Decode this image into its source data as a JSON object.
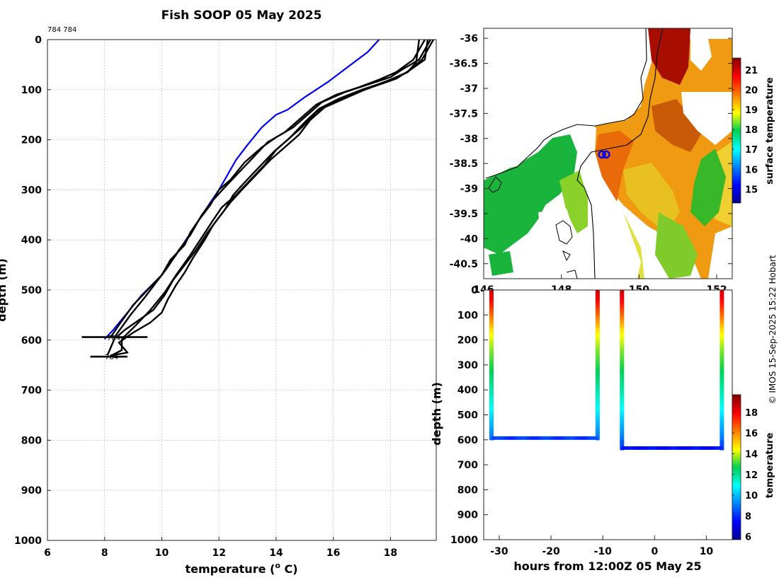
{
  "title": "Fish SOOP 05 May 2025",
  "profile_label_top": "784 784",
  "profile_marker_labels": [
    "784",
    "784"
  ],
  "credit": "© IMOS 15-Sep-2025 15:22 Hobart",
  "colors": {
    "profile": "#000000",
    "climatology": "#0000ee",
    "grid": "#b5b5b5"
  },
  "chart_data": [
    {
      "type": "line",
      "name": "profile-plot",
      "title": "Fish SOOP 05 May 2025",
      "xlabel": "temperature (° C)",
      "xlabel_main": "temperature (",
      "xlabel_sup": "o",
      "xlabel_end": " C)",
      "ylabel": "depth (m)",
      "xlim": [
        6,
        19.6
      ],
      "ylim": [
        0,
        1000
      ],
      "y_inverted": true,
      "xticks": [
        6,
        8,
        10,
        12,
        14,
        16,
        18
      ],
      "yticks": [
        0,
        100,
        200,
        300,
        400,
        500,
        600,
        700,
        800,
        900,
        1000
      ],
      "grid": true,
      "series": [
        {
          "name": "climatology",
          "color": "#0000ee",
          "points": [
            [
              17.6,
              0
            ],
            [
              17.2,
              25
            ],
            [
              16.5,
              55
            ],
            [
              15.8,
              85
            ],
            [
              15.0,
              115
            ],
            [
              14.4,
              140
            ],
            [
              14.0,
              150
            ],
            [
              13.5,
              175
            ],
            [
              13.0,
              210
            ],
            [
              12.6,
              240
            ],
            [
              12.3,
              270
            ],
            [
              12.0,
              300
            ],
            [
              11.7,
              325
            ],
            [
              11.3,
              360
            ],
            [
              10.9,
              395
            ],
            [
              10.5,
              430
            ],
            [
              10.0,
              470
            ],
            [
              9.3,
              510
            ],
            [
              8.8,
              545
            ],
            [
              8.3,
              580
            ],
            [
              8.0,
              598
            ]
          ]
        },
        {
          "name": "xbt-1",
          "color": "#000000",
          "points": [
            [
              19.4,
              0
            ],
            [
              19.0,
              40
            ],
            [
              18.4,
              60
            ],
            [
              18.0,
              75
            ],
            [
              17.2,
              90
            ],
            [
              16.4,
              105
            ],
            [
              15.6,
              125
            ],
            [
              15.1,
              150
            ],
            [
              14.6,
              175
            ],
            [
              14.0,
              195
            ],
            [
              13.5,
              215
            ],
            [
              12.9,
              245
            ],
            [
              12.4,
              280
            ],
            [
              12.0,
              300
            ],
            [
              11.7,
              330
            ],
            [
              11.3,
              360
            ],
            [
              11.0,
              385
            ],
            [
              10.8,
              410
            ],
            [
              10.3,
              440
            ],
            [
              10.0,
              470
            ],
            [
              9.5,
              500
            ],
            [
              9.0,
              530
            ],
            [
              8.5,
              570
            ],
            [
              8.2,
              595
            ]
          ]
        },
        {
          "name": "xbt-2",
          "color": "#000000",
          "points": [
            [
              19.2,
              0
            ],
            [
              18.8,
              40
            ],
            [
              18.2,
              65
            ],
            [
              17.6,
              80
            ],
            [
              16.9,
              95
            ],
            [
              16.1,
              110
            ],
            [
              15.4,
              130
            ],
            [
              14.8,
              160
            ],
            [
              14.3,
              185
            ],
            [
              13.7,
              205
            ],
            [
              13.2,
              235
            ],
            [
              12.7,
              265
            ],
            [
              12.2,
              295
            ],
            [
              11.8,
              320
            ],
            [
              11.4,
              350
            ],
            [
              11.0,
              390
            ],
            [
              10.6,
              420
            ],
            [
              10.2,
              455
            ],
            [
              9.8,
              485
            ],
            [
              9.4,
              515
            ],
            [
              8.9,
              550
            ],
            [
              8.4,
              590
            ],
            [
              8.1,
              630
            ]
          ]
        },
        {
          "name": "xbt-3",
          "color": "#000000",
          "points": [
            [
              19.5,
              0
            ],
            [
              19.1,
              40
            ],
            [
              18.6,
              65
            ],
            [
              18.0,
              80
            ],
            [
              17.3,
              95
            ],
            [
              16.5,
              115
            ],
            [
              15.7,
              135
            ],
            [
              15.2,
              160
            ],
            [
              14.8,
              190
            ],
            [
              14.3,
              215
            ],
            [
              13.8,
              240
            ],
            [
              13.3,
              270
            ],
            [
              12.8,
              300
            ],
            [
              12.4,
              325
            ],
            [
              12.0,
              355
            ],
            [
              11.6,
              385
            ],
            [
              11.2,
              420
            ],
            [
              10.8,
              450
            ],
            [
              10.4,
              480
            ],
            [
              10.1,
              510
            ],
            [
              9.7,
              540
            ],
            [
              9.2,
              560
            ],
            [
              8.7,
              580
            ],
            [
              8.4,
              595
            ]
          ]
        },
        {
          "name": "xbt-4",
          "color": "#000000",
          "points": [
            [
              19.3,
              0
            ],
            [
              19.2,
              40
            ],
            [
              18.7,
              60
            ],
            [
              18.2,
              78
            ],
            [
              17.5,
              92
            ],
            [
              16.7,
              108
            ],
            [
              16.0,
              125
            ],
            [
              15.4,
              145
            ],
            [
              14.9,
              175
            ],
            [
              14.4,
              200
            ],
            [
              13.9,
              225
            ],
            [
              13.4,
              255
            ],
            [
              12.9,
              285
            ],
            [
              12.5,
              310
            ],
            [
              12.2,
              340
            ],
            [
              11.8,
              370
            ],
            [
              11.5,
              400
            ],
            [
              11.1,
              435
            ],
            [
              10.8,
              465
            ],
            [
              10.5,
              490
            ],
            [
              10.2,
              520
            ],
            [
              10.0,
              545
            ],
            [
              9.6,
              565
            ],
            [
              9.0,
              585
            ],
            [
              8.5,
              605
            ],
            [
              8.8,
              625
            ],
            [
              8.3,
              630
            ]
          ]
        },
        {
          "name": "xbt-5",
          "color": "#000000",
          "points": [
            [
              19.0,
              0
            ],
            [
              18.9,
              45
            ],
            [
              18.6,
              65
            ],
            [
              17.8,
              85
            ],
            [
              17.0,
              100
            ],
            [
              16.2,
              118
            ],
            [
              15.5,
              138
            ],
            [
              15.0,
              165
            ],
            [
              14.5,
              195
            ],
            [
              14.0,
              220
            ],
            [
              13.6,
              250
            ],
            [
              13.1,
              280
            ],
            [
              12.6,
              310
            ],
            [
              12.1,
              335
            ],
            [
              11.8,
              360
            ],
            [
              11.4,
              395
            ],
            [
              11.0,
              430
            ],
            [
              10.5,
              470
            ],
            [
              10.1,
              505
            ],
            [
              9.6,
              540
            ],
            [
              9.1,
              570
            ],
            [
              8.6,
              598
            ],
            [
              8.6,
              620
            ],
            [
              8.2,
              632
            ]
          ]
        }
      ],
      "hlines": [
        {
          "name": "cutoff-594",
          "y": 594,
          "x": [
            7.2,
            9.5
          ]
        },
        {
          "name": "cutoff-633",
          "y": 633,
          "x": [
            7.5,
            8.8
          ]
        }
      ]
    },
    {
      "type": "heatmap",
      "name": "sst-map",
      "xticks": [
        146,
        148,
        150,
        152
      ],
      "yticks": [
        -36,
        -36.5,
        -37,
        -37.5,
        -38,
        -38.5,
        -39,
        -39.5,
        -40,
        -40.5
      ],
      "xlim": [
        146,
        152.4
      ],
      "ylim": [
        -40.8,
        -35.8
      ],
      "colorbar_label": "surface temperature",
      "colorbar_ticks": [
        15,
        16,
        17,
        18,
        19,
        20,
        21
      ],
      "colorbar_range": [
        14.3,
        21.6
      ],
      "ship_position": {
        "lon": 149.1,
        "lat": -38.32
      }
    },
    {
      "type": "scatter",
      "name": "depth-time-section",
      "xlabel": "hours from 12:00Z 05 May 25",
      "ylabel": "depth (m)",
      "xticks": [
        -30,
        -20,
        -10,
        0,
        10
      ],
      "yticks": [
        0,
        100,
        200,
        300,
        400,
        500,
        600,
        700,
        800,
        900,
        1000
      ],
      "xlim": [
        -33,
        15
      ],
      "ylim": [
        0,
        1000
      ],
      "y_inverted": true,
      "colorbar_label": "temperature",
      "colorbar_ticks": [
        6,
        8,
        10,
        12,
        14,
        16,
        18
      ],
      "colorbar_range": [
        5.7,
        19.7
      ],
      "casts": [
        {
          "t_start": -31.5,
          "t_end": -11.0,
          "max_depth": 593
        },
        {
          "t_start": -6.3,
          "t_end": 13.0,
          "max_depth": 633
        }
      ]
    }
  ]
}
